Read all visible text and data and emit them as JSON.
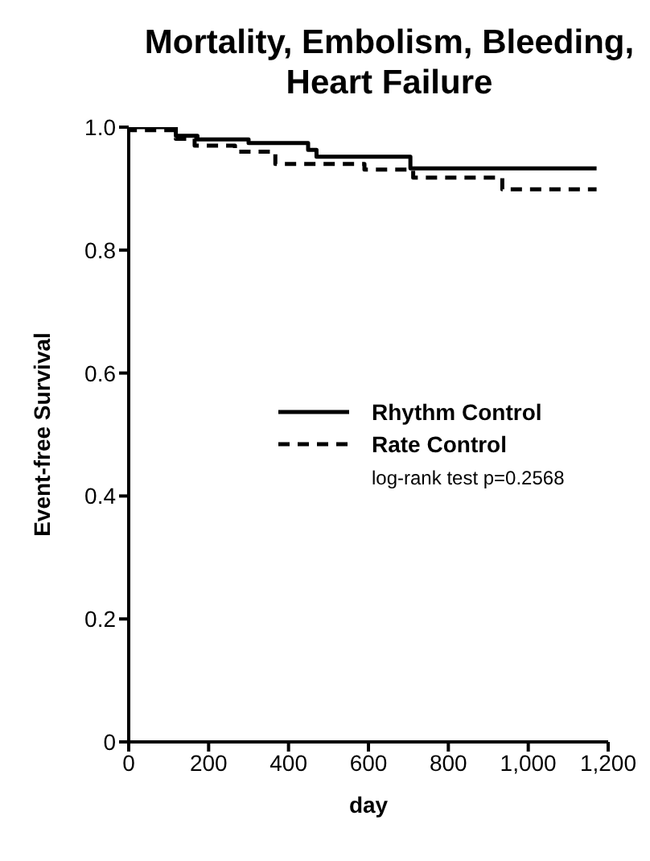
{
  "chart_data": {
    "type": "step",
    "title": "Mortality, Embolism, Bleeding, Heart Failure",
    "xlabel": "day",
    "ylabel": "Event-free Survival",
    "annotations": [
      "log-rank test p=0.2568"
    ],
    "series": [
      {
        "name": "Rhythm Control",
        "color": "#000000",
        "line_style": "solid",
        "x": [
          0,
          118,
          172,
          300,
          449,
          470,
          705,
          1171
        ],
        "values": [
          1.0,
          0.986,
          0.98,
          0.974,
          0.963,
          0.952,
          0.933,
          0.933
        ]
      },
      {
        "name": "Rate Control",
        "color": "#000000",
        "line_style": "dashed",
        "x": [
          0,
          5,
          118,
          165,
          266,
          367,
          590,
          712,
          935,
          1171
        ],
        "values": [
          1.0,
          0.995,
          0.981,
          0.97,
          0.96,
          0.94,
          0.931,
          0.918,
          0.899,
          0.899
        ]
      }
    ],
    "xlim": [
      0,
      1200
    ],
    "xticks": [
      0,
      200,
      400,
      600,
      800,
      {
        "value": 1000,
        "label": "1,000"
      },
      {
        "value": 1200,
        "label": "1,200"
      }
    ],
    "ylim": [
      0,
      1
    ],
    "yticks": [
      0,
      0.2,
      0.4,
      0.6,
      0.8,
      {
        "value": 1,
        "label": "1.0"
      }
    ],
    "grid": false,
    "legend": "right",
    "marker": "none"
  }
}
